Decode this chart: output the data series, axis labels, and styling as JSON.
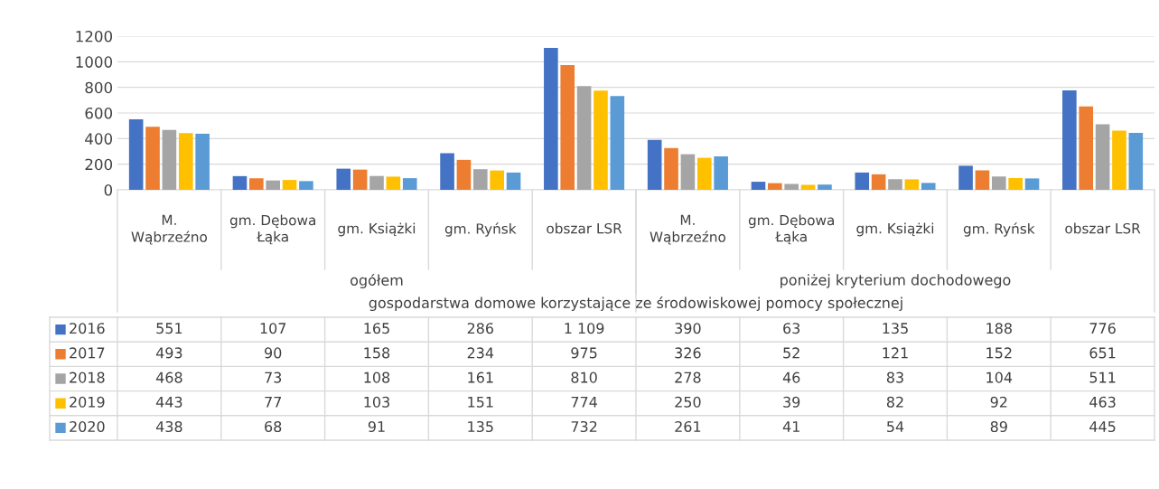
{
  "chart_data": {
    "type": "bar",
    "categories": [
      "M. Wąbrzeźno",
      "gm. Dębowa Łąka",
      "gm. Książki",
      "gm. Ryńsk",
      "obszar LSR",
      "M. Wąbrzeźno",
      "gm. Dębowa Łąka",
      "gm. Książki",
      "gm. Ryńsk",
      "obszar LSR"
    ],
    "series": [
      {
        "name": "2016",
        "color": "#4472c4",
        "values": [
          551,
          107,
          165,
          286,
          1109,
          390,
          63,
          135,
          188,
          776
        ]
      },
      {
        "name": "2017",
        "color": "#ed7d31",
        "values": [
          493,
          90,
          158,
          234,
          975,
          326,
          52,
          121,
          152,
          651
        ]
      },
      {
        "name": "2018",
        "color": "#a5a5a5",
        "values": [
          468,
          73,
          108,
          161,
          810,
          278,
          46,
          83,
          104,
          511
        ]
      },
      {
        "name": "2019",
        "color": "#ffc000",
        "values": [
          443,
          77,
          103,
          151,
          774,
          250,
          39,
          82,
          92,
          463
        ]
      },
      {
        "name": "2020",
        "color": "#5b9bd5",
        "values": [
          438,
          68,
          91,
          135,
          732,
          261,
          41,
          54,
          89,
          445
        ]
      }
    ],
    "ylim": [
      0,
      1200
    ],
    "yticks": [
      0,
      200,
      400,
      600,
      800,
      1000,
      1200
    ],
    "grid": "y",
    "legend": "bottom",
    "data_labels": true,
    "annotations": [
      "ogółem",
      "poniżej kryterium dochodowego",
      "gospodarstwa domowe korzystające ze środowiskowej pomocy społecznej"
    ]
  }
}
